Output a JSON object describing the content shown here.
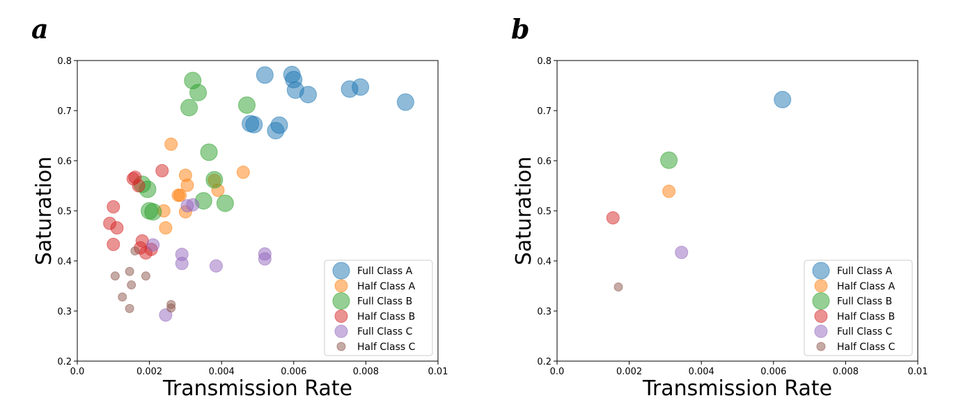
{
  "chart_data": [
    {
      "panel": "a",
      "type": "scatter",
      "xlabel": "Transmission Rate",
      "ylabel": "Saturation",
      "xlim": [
        0,
        0.01
      ],
      "ylim": [
        0.2,
        0.8
      ],
      "xticks": [
        "0.0",
        "0.002",
        "0.004",
        "0.006",
        "0.008",
        "0.01"
      ],
      "yticks": [
        "0.2",
        "0.3",
        "0.4",
        "0.5",
        "0.6",
        "0.7",
        "0.8"
      ],
      "grid": false,
      "legend_position": "lower-right",
      "series": [
        {
          "name": "Full Class A",
          "color": "#1f77b4",
          "size": "large",
          "points": [
            [
              0.0052,
              0.771
            ],
            [
              0.00595,
              0.772
            ],
            [
              0.006,
              0.762
            ],
            [
              0.00605,
              0.741
            ],
            [
              0.0064,
              0.732
            ],
            [
              0.00755,
              0.743
            ],
            [
              0.00785,
              0.747
            ],
            [
              0.0091,
              0.717
            ],
            [
              0.0048,
              0.674
            ],
            [
              0.0049,
              0.672
            ],
            [
              0.0055,
              0.66
            ],
            [
              0.0056,
              0.671
            ]
          ]
        },
        {
          "name": "Half Class A",
          "color": "#ff7f0e",
          "size": "medium",
          "points": [
            [
              0.0026,
              0.633
            ],
            [
              0.0046,
              0.577
            ],
            [
              0.003,
              0.571
            ],
            [
              0.00305,
              0.551
            ],
            [
              0.0038,
              0.561
            ],
            [
              0.0028,
              0.531
            ],
            [
              0.00285,
              0.531
            ],
            [
              0.0039,
              0.541
            ],
            [
              0.0024,
              0.5
            ],
            [
              0.003,
              0.498
            ],
            [
              0.00245,
              0.466
            ]
          ]
        },
        {
          "name": "Full Class B",
          "color": "#2ca02c",
          "size": "large",
          "points": [
            [
              0.0032,
              0.76
            ],
            [
              0.00335,
              0.736
            ],
            [
              0.0031,
              0.706
            ],
            [
              0.0047,
              0.711
            ],
            [
              0.00365,
              0.617
            ],
            [
              0.0038,
              0.562
            ],
            [
              0.0018,
              0.553
            ],
            [
              0.00195,
              0.543
            ],
            [
              0.0035,
              0.52
            ],
            [
              0.0041,
              0.515
            ],
            [
              0.002,
              0.5
            ],
            [
              0.0021,
              0.498
            ]
          ]
        },
        {
          "name": "Half Class B",
          "color": "#d62728",
          "size": "medium",
          "points": [
            [
              0.00155,
              0.564
            ],
            [
              0.0016,
              0.567
            ],
            [
              0.00235,
              0.58
            ],
            [
              0.0017,
              0.55
            ],
            [
              0.001,
              0.508
            ],
            [
              0.0009,
              0.475
            ],
            [
              0.0011,
              0.466
            ],
            [
              0.001,
              0.433
            ],
            [
              0.0018,
              0.44
            ],
            [
              0.00175,
              0.426
            ],
            [
              0.0019,
              0.416
            ],
            [
              0.00205,
              0.423
            ]
          ]
        },
        {
          "name": "Full Class C",
          "color": "#9467bd",
          "size": "medium",
          "points": [
            [
              0.00305,
              0.51
            ],
            [
              0.0032,
              0.512
            ],
            [
              0.0021,
              0.432
            ],
            [
              0.0029,
              0.413
            ],
            [
              0.0029,
              0.395
            ],
            [
              0.00385,
              0.39
            ],
            [
              0.0052,
              0.414
            ],
            [
              0.0052,
              0.404
            ],
            [
              0.00245,
              0.292
            ]
          ]
        },
        {
          "name": "Half Class C",
          "color": "#8c564b",
          "size": "small",
          "points": [
            [
              0.0016,
              0.42
            ],
            [
              0.00145,
              0.379
            ],
            [
              0.00105,
              0.37
            ],
            [
              0.0019,
              0.37
            ],
            [
              0.0015,
              0.352
            ],
            [
              0.00125,
              0.328
            ],
            [
              0.00145,
              0.305
            ],
            [
              0.0026,
              0.313
            ],
            [
              0.0026,
              0.306
            ]
          ]
        }
      ]
    },
    {
      "panel": "b",
      "type": "scatter",
      "xlabel": "Transmission Rate",
      "ylabel": "Saturation",
      "xlim": [
        0,
        0.01
      ],
      "ylim": [
        0.2,
        0.8
      ],
      "xticks": [
        "0.0",
        "0.002",
        "0.004",
        "0.006",
        "0.008",
        "0.01"
      ],
      "yticks": [
        "0.2",
        "0.3",
        "0.4",
        "0.5",
        "0.6",
        "0.7",
        "0.8"
      ],
      "grid": false,
      "legend_position": "lower-right",
      "series": [
        {
          "name": "Full Class A",
          "color": "#1f77b4",
          "size": "large",
          "points": [
            [
              0.00625,
              0.722
            ]
          ]
        },
        {
          "name": "Half Class A",
          "color": "#ff7f0e",
          "size": "medium",
          "points": [
            [
              0.0031,
              0.539
            ]
          ]
        },
        {
          "name": "Full Class B",
          "color": "#2ca02c",
          "size": "large",
          "points": [
            [
              0.0031,
              0.601
            ]
          ]
        },
        {
          "name": "Half Class B",
          "color": "#d62728",
          "size": "medium",
          "points": [
            [
              0.00155,
              0.486
            ]
          ]
        },
        {
          "name": "Full Class C",
          "color": "#9467bd",
          "size": "medium",
          "points": [
            [
              0.00345,
              0.417
            ]
          ]
        },
        {
          "name": "Half Class C",
          "color": "#8c564b",
          "size": "small",
          "points": [
            [
              0.0017,
              0.348
            ]
          ]
        }
      ]
    }
  ]
}
